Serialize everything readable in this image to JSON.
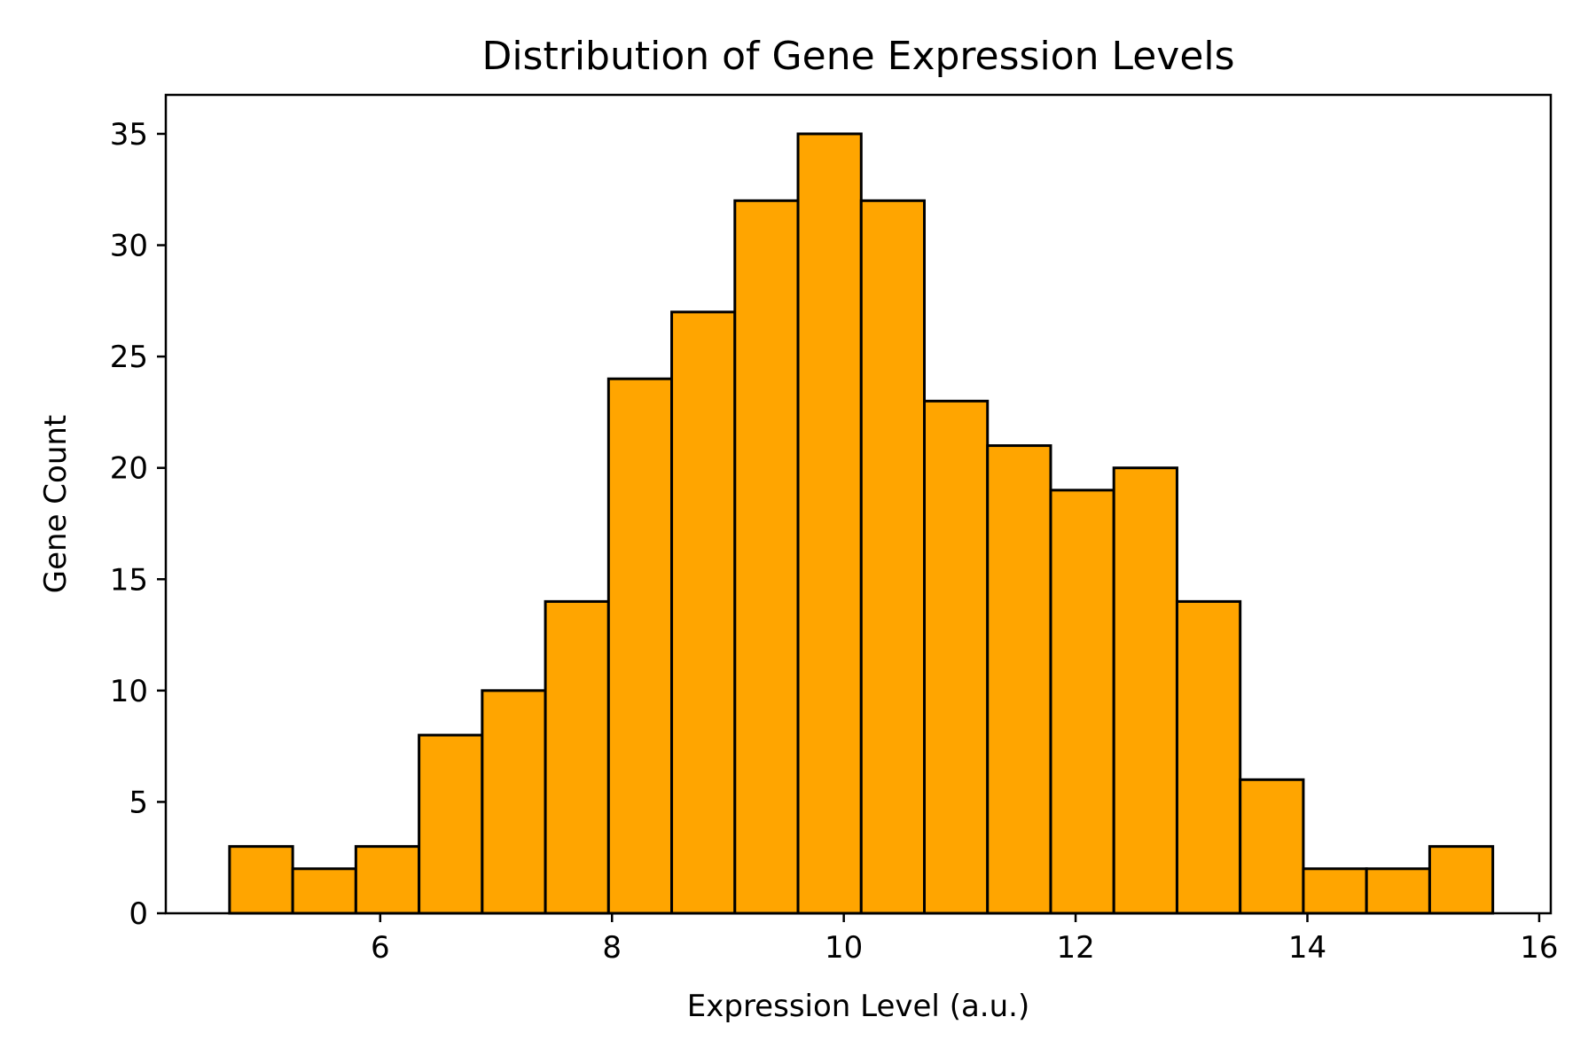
{
  "chart_data": {
    "type": "bar",
    "title": "Distribution of Gene Expression Levels",
    "xlabel": "Expression Level (a.u.)",
    "ylabel": "Gene Count",
    "xlim": [
      4.15,
      16.1
    ],
    "ylim": [
      0,
      36.75
    ],
    "x_ticks": [
      6,
      8,
      10,
      12,
      14,
      16
    ],
    "y_ticks": [
      0,
      5,
      10,
      15,
      20,
      25,
      30,
      35
    ],
    "bin_edges": [
      4.7,
      5.245,
      5.79,
      6.335,
      6.88,
      7.425,
      7.97,
      8.515,
      9.06,
      9.605,
      10.15,
      10.695,
      11.24,
      11.785,
      12.33,
      12.875,
      13.42,
      13.965,
      14.51,
      15.055,
      15.6
    ],
    "values": [
      3,
      2,
      3,
      8,
      10,
      14,
      24,
      27,
      32,
      35,
      32,
      23,
      21,
      19,
      20,
      14,
      6,
      2,
      2,
      3
    ],
    "bar_color": "#FFA500",
    "edge_color": "#000000",
    "grid": false
  }
}
